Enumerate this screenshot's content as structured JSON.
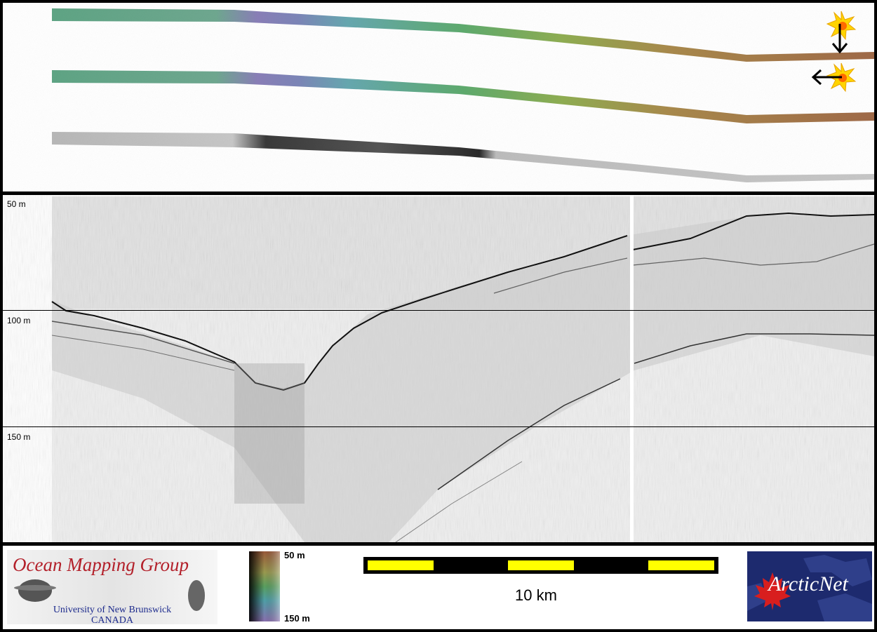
{
  "depth_labels": {
    "d50": "50 m",
    "d100": "100 m",
    "d150": "150 m"
  },
  "legend": {
    "org_title": "Ocean Mapping Group",
    "org_sub1": "University of New Brunswick",
    "org_sub2": "CANADA",
    "colorbar_top": "50 m",
    "colorbar_bottom": "150 m",
    "scale": "10 km",
    "partner": "ArcticNet"
  },
  "colors": {
    "scalebar_fill": "#ffff00",
    "org_title": "#b3202a",
    "org_sub": "#1c2a8c",
    "partner_bg": "#1d2a6e"
  },
  "icons": [
    "sun-icon",
    "arrow-down-icon",
    "arrow-left-icon",
    "maple-leaf-icon"
  ]
}
